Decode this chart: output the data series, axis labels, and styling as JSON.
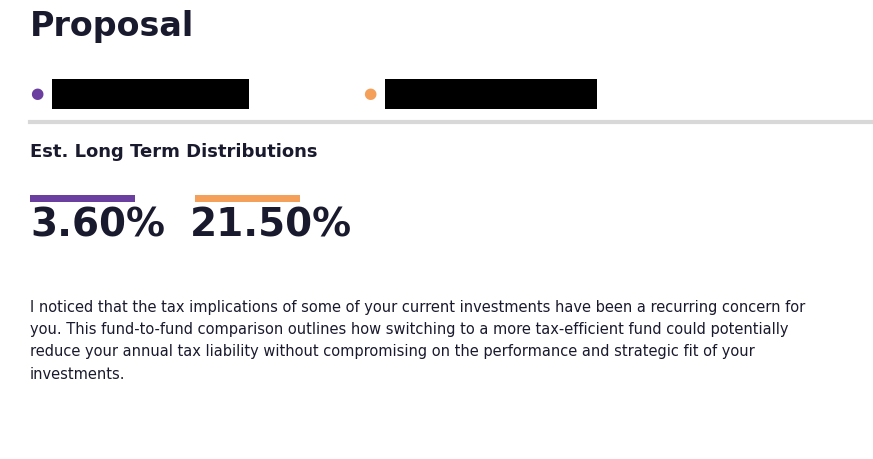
{
  "title": "Proposal",
  "title_fontsize": 24,
  "title_fontweight": "bold",
  "title_color": "#1a1a2e",
  "dot1_color": "#6b3fa0",
  "dot2_color": "#f5a05a",
  "separator_color": "#d8d8d8",
  "section_title": "Est. Long Term Distributions",
  "section_title_fontsize": 13,
  "section_title_fontweight": "bold",
  "section_title_color": "#1a1a2e",
  "bar1_color": "#6b3fa0",
  "bar2_color": "#f5a05a",
  "value1": "3.60%",
  "value2": "21.50%",
  "value_fontsize": 28,
  "value_color": "#1a1a2e",
  "body_text": "I noticed that the tax implications of some of your current investments have been a recurring concern for\nyou. This fund-to-fund comparison outlines how switching to a more tax-efficient fund could potentially\nreduce your annual tax liability without compromising on the performance and strategic fit of your\ninvestments.",
  "body_fontsize": 10.5,
  "body_color": "#1a1a2e",
  "background_color": "#ffffff"
}
